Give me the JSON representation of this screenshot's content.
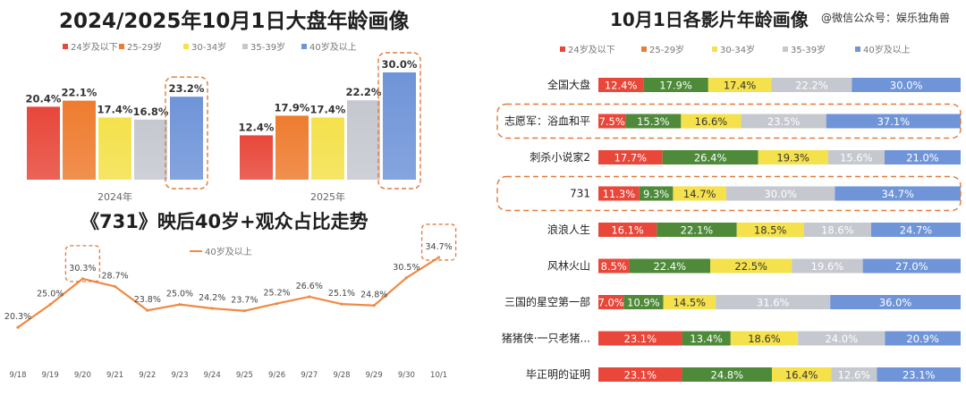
{
  "watermark": "@微信公众号：娱乐独角兽",
  "colors": {
    "age_24_below": "#e8473a",
    "age_25_29": "#ee7c2f",
    "age_30_34": "#f4e14b",
    "age_35_39": "#c5c8cf",
    "age_40_above": "#6f94d8",
    "stack_25_29": "#4e8a3a",
    "line": "#ef8a45"
  },
  "chart_data": [
    {
      "type": "bar",
      "title": "2024/2025年10月1日大盘年龄画像",
      "legend": [
        "24岁及以下",
        "25-29岁",
        "30-34岁",
        "35-39岁",
        "40岁及以上"
      ],
      "legend_position": "top",
      "categories": [
        "2024年",
        "2025年"
      ],
      "series": [
        {
          "name": "24岁及以下",
          "values": [
            20.4,
            12.4
          ],
          "labels": [
            "20.4%",
            "12.4%"
          ]
        },
        {
          "name": "25-29岁",
          "values": [
            22.1,
            17.9
          ],
          "labels": [
            "22.1%",
            "17.9%"
          ]
        },
        {
          "name": "30-34岁",
          "values": [
            17.4,
            17.4
          ],
          "labels": [
            "17.4%",
            "17.4%"
          ]
        },
        {
          "name": "35-39岁",
          "values": [
            16.8,
            22.2
          ],
          "labels": [
            "16.8%",
            "22.2%"
          ]
        },
        {
          "name": "40岁及以上",
          "values": [
            23.2,
            30.0
          ],
          "labels": [
            "23.2%",
            "30.0%"
          ]
        }
      ],
      "ylim": [
        0,
        31
      ],
      "grid": false
    },
    {
      "type": "line",
      "title": "《731》映后40岁+观众占比走势",
      "legend": [
        "40岁及以上"
      ],
      "legend_position": "top",
      "x": [
        "9/18",
        "9/19",
        "9/20",
        "9/21",
        "9/22",
        "9/23",
        "9/24",
        "9/25",
        "9/26",
        "9/27",
        "9/28",
        "9/29",
        "9/30",
        "10/1"
      ],
      "series": [
        {
          "name": "40岁及以上",
          "values": [
            20.3,
            25.0,
            30.3,
            28.7,
            23.8,
            25.0,
            24.2,
            23.7,
            25.2,
            26.6,
            25.1,
            24.8,
            30.5,
            34.7
          ],
          "labels": [
            "20.3%",
            "25.0%",
            "30.3%",
            "28.7%",
            "23.8%",
            "25.0%",
            "24.2%",
            "23.7%",
            "25.2%",
            "26.6%",
            "25.1%",
            "24.8%",
            "30.5%",
            "34.7%"
          ]
        }
      ],
      "ylim": [
        15,
        38
      ],
      "grid": false
    },
    {
      "type": "bar",
      "orientation": "horizontal-stacked-100",
      "title": "10月1日各影片年龄画像",
      "legend": [
        "24岁及以下",
        "25-29岁",
        "30-34岁",
        "35-39岁",
        "40岁及以上"
      ],
      "legend_position": "top",
      "categories": [
        "全国大盘",
        "志愿军：浴血和平",
        "刺杀小说家2",
        "731",
        "浪浪人生",
        "风林火山",
        "三国的星空第一部",
        "猪猪侠·一只老猪...",
        "毕正明的证明"
      ],
      "series": [
        {
          "name": "24岁及以下",
          "values": [
            12.4,
            7.5,
            17.7,
            11.3,
            16.1,
            8.5,
            7.0,
            23.1,
            23.1
          ],
          "labels": [
            "12.4%",
            "7.5%",
            "17.7%",
            "11.3%",
            "16.1%",
            "8.5%",
            "7.0%",
            "23.1%",
            "23.1%"
          ]
        },
        {
          "name": "25-29岁",
          "values": [
            17.9,
            15.3,
            26.4,
            9.3,
            22.1,
            22.4,
            10.9,
            13.4,
            24.8
          ],
          "labels": [
            "17.9%",
            "15.3%",
            "26.4%",
            "9.3%",
            "22.1%",
            "22.4%",
            "10.9%",
            "13.4%",
            "24.8%"
          ]
        },
        {
          "name": "30-34岁",
          "values": [
            17.4,
            16.6,
            19.3,
            14.7,
            18.5,
            22.5,
            14.5,
            18.6,
            16.4
          ],
          "labels": [
            "17.4%",
            "16.6%",
            "19.3%",
            "14.7%",
            "18.5%",
            "22.5%",
            "14.5%",
            "18.6%",
            "16.4%"
          ]
        },
        {
          "name": "35-39岁",
          "values": [
            22.2,
            23.5,
            15.6,
            30.0,
            18.6,
            19.6,
            31.6,
            24.0,
            12.6
          ],
          "labels": [
            "22.2%",
            "23.5%",
            "15.6%",
            "30.0%",
            "18.6%",
            "19.6%",
            "31.6%",
            "24.0%",
            "12.6%"
          ]
        },
        {
          "name": "40岁及以上",
          "values": [
            30.0,
            37.1,
            21.0,
            34.7,
            24.7,
            27.0,
            36.0,
            20.9,
            23.1
          ],
          "labels": [
            "30.0%",
            "37.1%",
            "21.0%",
            "34.7%",
            "24.7%",
            "27.0%",
            "36.0%",
            "20.9%",
            "23.1%"
          ]
        }
      ],
      "highlighted_rows": [
        "志愿军：浴血和平",
        "731"
      ],
      "grid": false
    }
  ]
}
